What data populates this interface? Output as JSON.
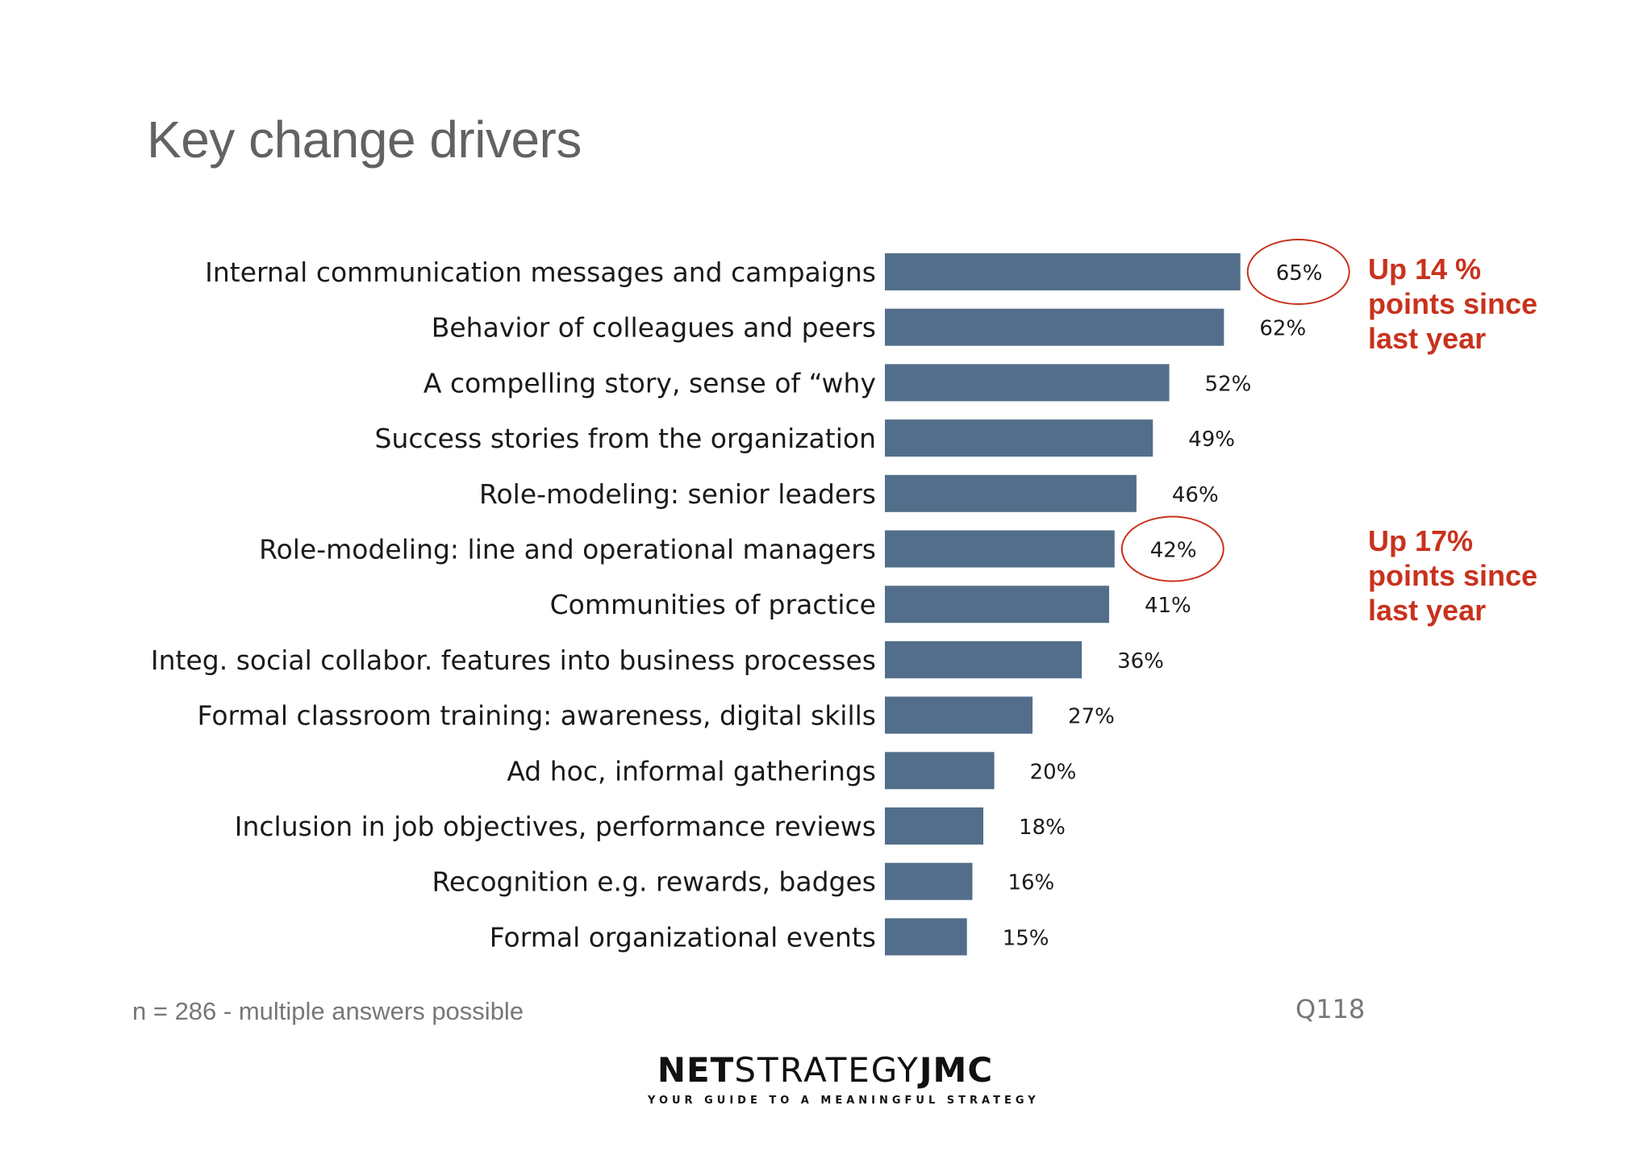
{
  "title": "Key change drivers",
  "chart_data": {
    "type": "bar",
    "orientation": "horizontal",
    "categories": [
      "Internal communication messages and campaigns",
      "Behavior of colleagues and peers",
      "A compelling story, sense of “why",
      "Success stories from the organization",
      "Role-modeling: senior  leaders",
      "Role-modeling:  line and operational managers",
      "Communities of practice",
      "Integ. social collabor. features into business processes",
      "Formal classroom training: awareness, digital skills",
      "Ad hoc, informal gatherings",
      "Inclusion in job objectives, performance reviews",
      "Recognition e.g. rewards, badges",
      "Formal organizational events"
    ],
    "values": [
      65,
      62,
      52,
      49,
      46,
      42,
      41,
      36,
      27,
      20,
      18,
      16,
      15
    ],
    "value_labels": [
      "65%",
      "62%",
      "52%",
      "49%",
      "46%",
      "42%",
      "41%",
      "36%",
      "27%",
      "20%",
      "18%",
      "16%",
      "15%"
    ],
    "unit": "%",
    "xlim": [
      0,
      100
    ],
    "grid": false,
    "legend": "none",
    "bar_color": "#526e8a",
    "highlight_color": "#c8321d",
    "highlighted_indices": [
      0,
      5
    ]
  },
  "callouts": [
    {
      "lines": [
        "Up 14 %",
        "points since",
        "last year"
      ]
    },
    {
      "lines": [
        "Up 17%",
        "points since",
        "last year"
      ]
    }
  ],
  "footnote": "n = 286 - multiple answers possible",
  "question_code": "Q118",
  "logo": {
    "part1": "NET",
    "part2": "STRATEGY",
    "part3": "JMC",
    "tagline": "YOUR GUIDE TO A MEANINGFUL STRATEGY"
  }
}
